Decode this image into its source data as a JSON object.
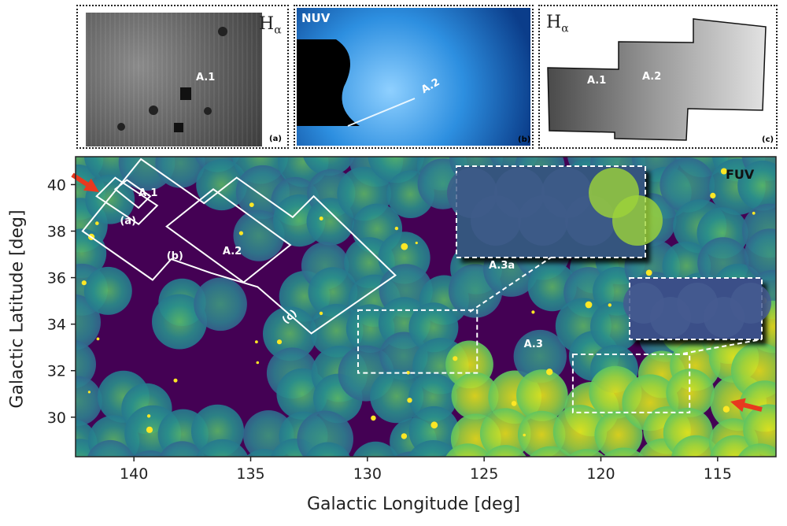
{
  "insets": [
    {
      "id": "a",
      "title": "H",
      "title_sub": "α",
      "letter": "(a)",
      "region": "A.1"
    },
    {
      "id": "b",
      "title": "NUV",
      "letter": "(b)",
      "region": "A.2"
    },
    {
      "id": "c",
      "title": "H",
      "title_sub": "α",
      "letter": "(c)",
      "regions": [
        "A.1",
        "A.2"
      ]
    }
  ],
  "main": {
    "band_label": "FUV",
    "region_labels": {
      "a1": "A.1",
      "a2": "A.2",
      "a3": "A.3",
      "a3a": "A.3a"
    },
    "footprint_labels": {
      "a": "(a)",
      "b": "(b)",
      "c": "(c)"
    }
  },
  "colors": {
    "background": "#440154",
    "viridis_mid": "#21918c",
    "viridis_high": "#fde725",
    "arrow": "#e8391f",
    "nuv_blue": "#2d8fe0"
  },
  "chart_data": {
    "type": "heatmap",
    "title": "",
    "xlabel": "Galactic Longitude [deg]",
    "ylabel": "Galactic Latitude [deg]",
    "xlim": [
      142.5,
      112.5
    ],
    "ylim": [
      28.3,
      41.2
    ],
    "xticks": [
      140,
      135,
      130,
      125,
      120,
      115
    ],
    "yticks": [
      30,
      32,
      34,
      36,
      38,
      40
    ],
    "xtick_labels": [
      "140",
      "135",
      "130",
      "125",
      "120",
      "115"
    ],
    "ytick_labels": [
      "30",
      "32",
      "34",
      "36",
      "38",
      "40"
    ],
    "colormap": "viridis",
    "annotations": [
      {
        "label": "A.1",
        "x": 139.8,
        "y": 39.5
      },
      {
        "label": "A.2",
        "x": 136.2,
        "y": 37.0
      },
      {
        "label": "A.3",
        "x": 123.3,
        "y": 33.0
      },
      {
        "label": "A.3a",
        "x": 124.8,
        "y": 36.4
      },
      {
        "label": "(a)",
        "x": 140.6,
        "y": 38.3
      },
      {
        "label": "(b)",
        "x": 138.6,
        "y": 36.8
      },
      {
        "label": "(c)",
        "x": 133.5,
        "y": 34.0
      }
    ]
  }
}
